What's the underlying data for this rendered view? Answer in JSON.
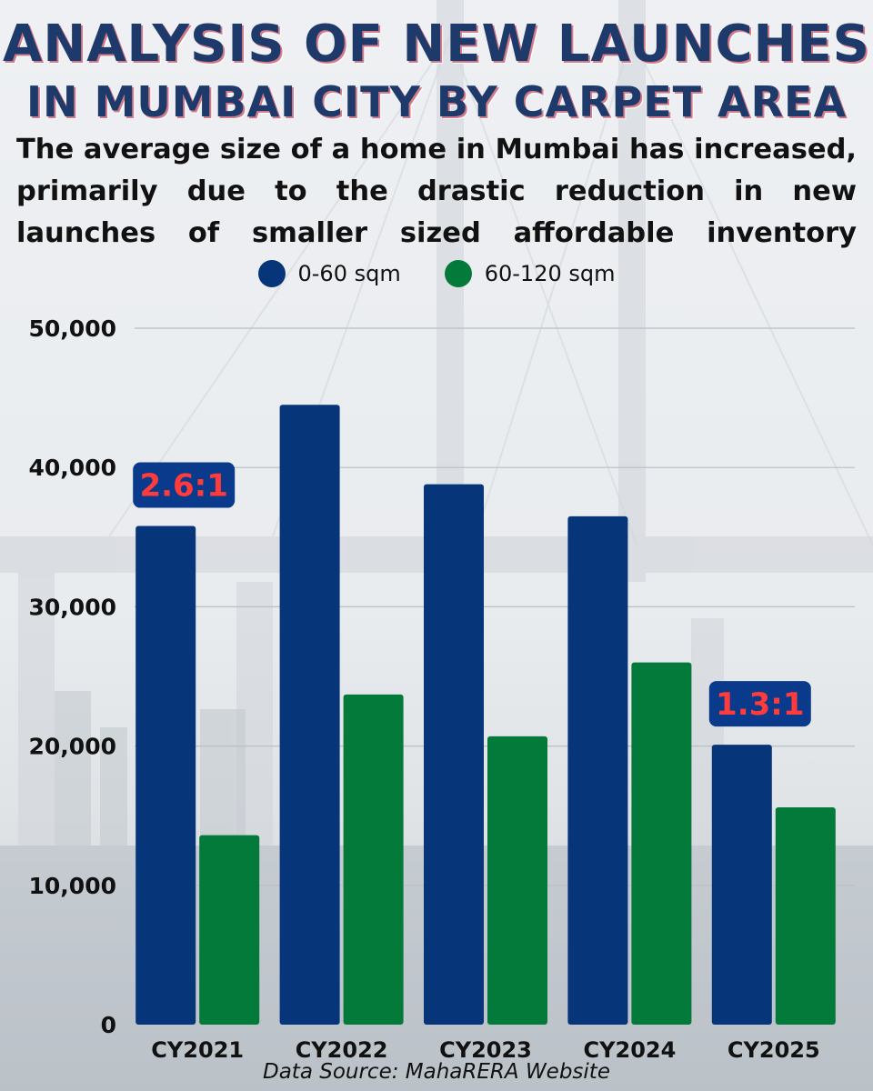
{
  "title_line1": "ANALYSIS OF NEW LAUNCHES",
  "title_line2": "IN MUMBAI CITY BY CARPET AREA",
  "subtitle": "The average size of a home in Mumbai has increased, primarily due to the drastic reduction in new launches of smaller sized affordable inventory",
  "source": "Data Source: MahaRERA Website",
  "colors": {
    "series1": "#06357a",
    "series2": "#037a3a",
    "ratio_bg": "#0a3a8c",
    "ratio_text": "#ff3b3b"
  },
  "chart_data": {
    "type": "bar",
    "categories": [
      "CY2021",
      "CY2022",
      "CY2023",
      "CY2024",
      "CY2025"
    ],
    "series": [
      {
        "name": "0-60 sqm",
        "values": [
          35800,
          44500,
          38800,
          36500,
          20100
        ]
      },
      {
        "name": "60-120 sqm",
        "values": [
          13600,
          23700,
          20700,
          26000,
          15600
        ]
      }
    ],
    "yticks": [
      0,
      10000,
      20000,
      30000,
      40000,
      50000
    ],
    "ytick_labels": [
      "0",
      "10,000",
      "20,000",
      "30,000",
      "40,000",
      "50,000"
    ],
    "ylim": [
      0,
      50000
    ],
    "grid": true,
    "legend": "top-center",
    "annotations": [
      {
        "category": "CY2021",
        "text": "2.6:1"
      },
      {
        "category": "CY2025",
        "text": "1.3:1"
      }
    ]
  }
}
